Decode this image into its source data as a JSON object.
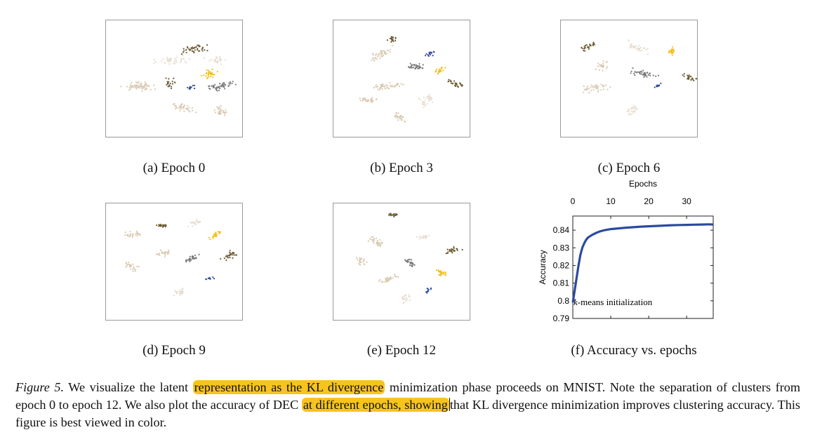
{
  "panels": [
    {
      "caption": "(a) Epoch 0"
    },
    {
      "caption": "(b) Epoch 3"
    },
    {
      "caption": "(c) Epoch 6"
    },
    {
      "caption": "(d) Epoch 9"
    },
    {
      "caption": "(e) Epoch 12"
    }
  ],
  "cluster_colors": {
    "light": "#d9c9b0",
    "pale": "#e6ddcf",
    "olive": "#6b5a30",
    "gray": "#7a7a7a",
    "yellow": "#f2c01e",
    "blue": "#2d4b9a"
  },
  "chart_panel": {
    "caption": "(f) Accuracy vs. epochs"
  },
  "chart_data": {
    "type": "line",
    "title": "",
    "xlabel": "Epochs",
    "ylabel": "Accuracy",
    "xlim": [
      0,
      37
    ],
    "ylim": [
      0.79,
      0.848
    ],
    "x_ticks": [
      "0",
      "10",
      "20",
      "30"
    ],
    "y_ticks": [
      "0.79",
      "0.8",
      "0.81",
      "0.82",
      "0.83",
      "0.84"
    ],
    "annotation": "-means initialization",
    "annotation_prefix": "k",
    "series": [
      {
        "color": "#2b4aa0",
        "x": [
          0,
          0.5,
          1,
          1.5,
          2,
          2.5,
          3,
          3.5,
          4,
          5,
          6,
          7,
          8,
          9,
          10,
          12,
          14,
          16,
          18,
          20,
          22,
          24,
          26,
          28,
          30,
          32,
          34,
          36,
          37
        ],
        "y": [
          0.799,
          0.806,
          0.813,
          0.82,
          0.826,
          0.83,
          0.8325,
          0.8345,
          0.8358,
          0.8372,
          0.8383,
          0.8392,
          0.8398,
          0.8402,
          0.8406,
          0.841,
          0.8414,
          0.8417,
          0.842,
          0.8422,
          0.8424,
          0.8426,
          0.8428,
          0.8429,
          0.843,
          0.8431,
          0.8432,
          0.8433,
          0.8432
        ]
      }
    ]
  },
  "caption": {
    "figure_label": "Figure 5.",
    "t1": " We visualize the latent ",
    "h1": "representation as the KL divergence",
    "t2": " minimization phase proceeds on MNIST. Note the separation of clusters from epoch 0 to epoch 12.  We also plot the accuracy of DEC ",
    "h2": "at different epochs, showing",
    "t3": "that KL divergence minimization improves clustering accuracy. This figure is best viewed in color."
  }
}
